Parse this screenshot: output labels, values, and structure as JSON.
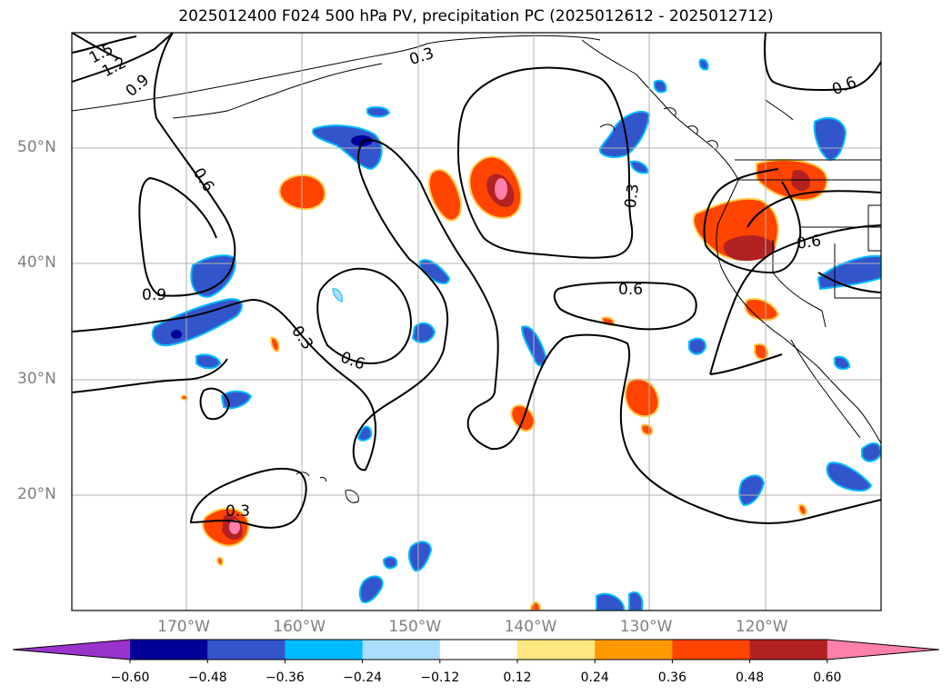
{
  "title": "2025012400 F024 500 hPa PV, precipitation PC (2025012612 - 2025012712)",
  "map": {
    "lon_range": [
      -180,
      -110
    ],
    "lat_range": [
      10,
      60
    ],
    "lon_ticks": [
      {
        "value": -170,
        "label": "170°W"
      },
      {
        "value": -160,
        "label": "160°W"
      },
      {
        "value": -150,
        "label": "150°W"
      },
      {
        "value": -140,
        "label": "140°W"
      },
      {
        "value": -130,
        "label": "130°W"
      },
      {
        "value": -120,
        "label": "120°W"
      }
    ],
    "lat_ticks": [
      {
        "value": 20,
        "label": "20°N"
      },
      {
        "value": 30,
        "label": "30°N"
      },
      {
        "value": 40,
        "label": "40°N"
      },
      {
        "value": 50,
        "label": "50°N"
      }
    ],
    "gridlines": true,
    "contour_labels": [
      "1.5",
      "1.2",
      "0.9",
      "0.3",
      "0.6",
      "0.6",
      "0.9",
      "0.3",
      "0.6",
      "0.3",
      "0.6",
      "0.6",
      "0.3",
      "0.6"
    ]
  },
  "colorbar": {
    "extend": "both",
    "tick_labels": [
      "−0.60",
      "−0.48",
      "−0.36",
      "−0.24",
      "−0.12",
      "0.12",
      "0.24",
      "0.36",
      "0.48",
      "0.60"
    ],
    "colors": [
      "#9933cc",
      "#000099",
      "#3355cc",
      "#00bbff",
      "#aaddff",
      "#ffffff",
      "#ffe680",
      "#ff9900",
      "#ff4400",
      "#b22222",
      "#ff80aa"
    ]
  }
}
